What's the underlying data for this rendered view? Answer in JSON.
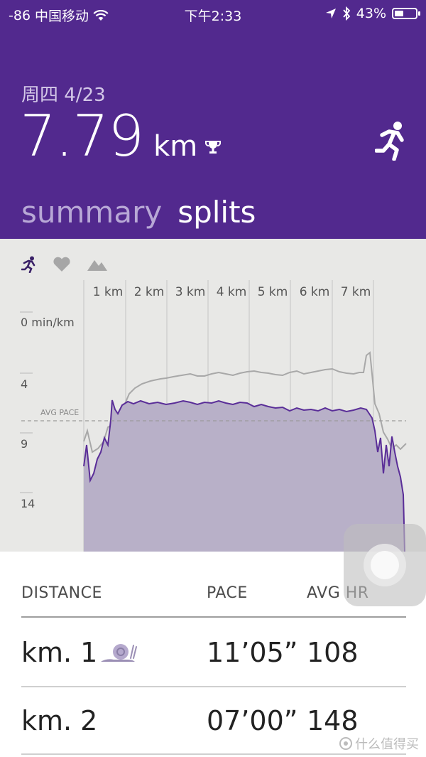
{
  "status_bar": {
    "signal": "-86",
    "carrier": "中国移动",
    "time": "下午2:33",
    "battery": "43%",
    "battery_level": 0.43
  },
  "header": {
    "date": "周四 4/23",
    "distance": "7.79",
    "unit": "km"
  },
  "tabs": {
    "summary": "summary",
    "splits": "splits"
  },
  "chart": {
    "km_labels": [
      "1 km",
      "2 km",
      "3 km",
      "4 km",
      "5 km",
      "6 km",
      "7 km"
    ],
    "y_labels": {
      "top": "0 min/km",
      "a": "4",
      "b": "9",
      "c": "14"
    },
    "avg_label": "AVG PACE"
  },
  "chart_data": {
    "type": "area",
    "x_ticks": [
      "1 km",
      "2 km",
      "3 km",
      "4 km",
      "5 km",
      "6 km",
      "7 km"
    ],
    "y_tick_labels": [
      "0 min/km",
      "4",
      "9",
      "14"
    ],
    "y_reversed": true,
    "avg_line_label": "AVG PACE"
  },
  "table": {
    "headers": {
      "distance": "DISTANCE",
      "pace": "PACE",
      "hr": "AVG HR"
    },
    "rows": [
      {
        "distance": "km. 1",
        "pace": "11’05”",
        "hr": "108",
        "icon": "snail-icon"
      },
      {
        "distance": "km. 2",
        "pace": "07’00”",
        "hr": "148"
      }
    ]
  },
  "watermark": "什么值得买",
  "colors": {
    "header": "#52298e",
    "accent_line": "#6a3ba8",
    "area_fill": "#b8b0c8",
    "chart_bg": "#e8e8e6"
  }
}
